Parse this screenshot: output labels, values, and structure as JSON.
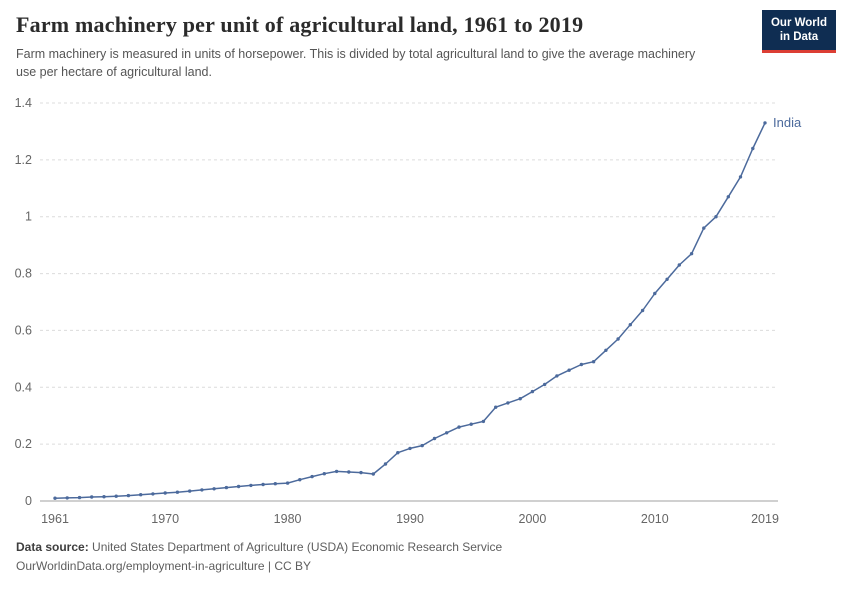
{
  "header": {
    "title": "Farm machinery per unit of agricultural land, 1961 to 2019",
    "subtitle": "Farm machinery is measured in units of horsepower. This is divided by total agricultural land to give the average machinery use per hectare of agricultural land.",
    "logo_line1": "Our World",
    "logo_line2": "in Data"
  },
  "colors": {
    "series_india": "#4C6A9C",
    "gridline": "#dcdcdc",
    "axis_line": "#a1a1a1",
    "tick_text": "#666666",
    "logo_bg": "#0f2d52",
    "logo_accent": "#dc3e34"
  },
  "chart_data": {
    "type": "line",
    "title": "Farm machinery per unit of agricultural land, 1961 to 2019",
    "xlabel": "",
    "ylabel": "",
    "xlim": [
      1961,
      2019
    ],
    "ylim": [
      0,
      1.4
    ],
    "grid": "horizontal-dashed",
    "legend_position": "end-of-line-label",
    "x_ticks": [
      1961,
      1970,
      1980,
      1990,
      2000,
      2010,
      2019
    ],
    "y_ticks": {
      "values": [
        0,
        0.2,
        0.4,
        0.6,
        0.8,
        1.0,
        1.2,
        1.4
      ],
      "labels": [
        "0",
        "0.2",
        "0.4",
        "0.6",
        "0.8",
        "1",
        "1.2",
        "1.4"
      ]
    },
    "series": [
      {
        "name": "India",
        "color": "#4C6A9C",
        "x": [
          1961,
          1962,
          1963,
          1964,
          1965,
          1966,
          1967,
          1968,
          1969,
          1970,
          1971,
          1972,
          1973,
          1974,
          1975,
          1976,
          1977,
          1978,
          1979,
          1980,
          1981,
          1982,
          1983,
          1984,
          1985,
          1986,
          1987,
          1988,
          1989,
          1990,
          1991,
          1992,
          1993,
          1994,
          1995,
          1996,
          1997,
          1998,
          1999,
          2000,
          2001,
          2002,
          2003,
          2004,
          2005,
          2006,
          2007,
          2008,
          2009,
          2010,
          2011,
          2012,
          2013,
          2014,
          2015,
          2016,
          2017,
          2018,
          2019
        ],
        "values": [
          0.01,
          0.011,
          0.012,
          0.014,
          0.015,
          0.017,
          0.019,
          0.022,
          0.025,
          0.028,
          0.031,
          0.035,
          0.039,
          0.043,
          0.047,
          0.051,
          0.055,
          0.058,
          0.061,
          0.063,
          0.075,
          0.086,
          0.096,
          0.104,
          0.102,
          0.1,
          0.095,
          0.13,
          0.17,
          0.185,
          0.195,
          0.22,
          0.24,
          0.26,
          0.27,
          0.28,
          0.33,
          0.345,
          0.36,
          0.385,
          0.41,
          0.44,
          0.46,
          0.48,
          0.49,
          0.53,
          0.57,
          0.62,
          0.67,
          0.73,
          0.78,
          0.83,
          0.87,
          0.96,
          1.0,
          1.07,
          1.14,
          1.24,
          1.33
        ]
      }
    ]
  },
  "footer": {
    "source_label": "Data source:",
    "source_text": "United States Department of Agriculture (USDA) Economic Research Service",
    "credit": "OurWorldinData.org/employment-in-agriculture | CC BY"
  }
}
